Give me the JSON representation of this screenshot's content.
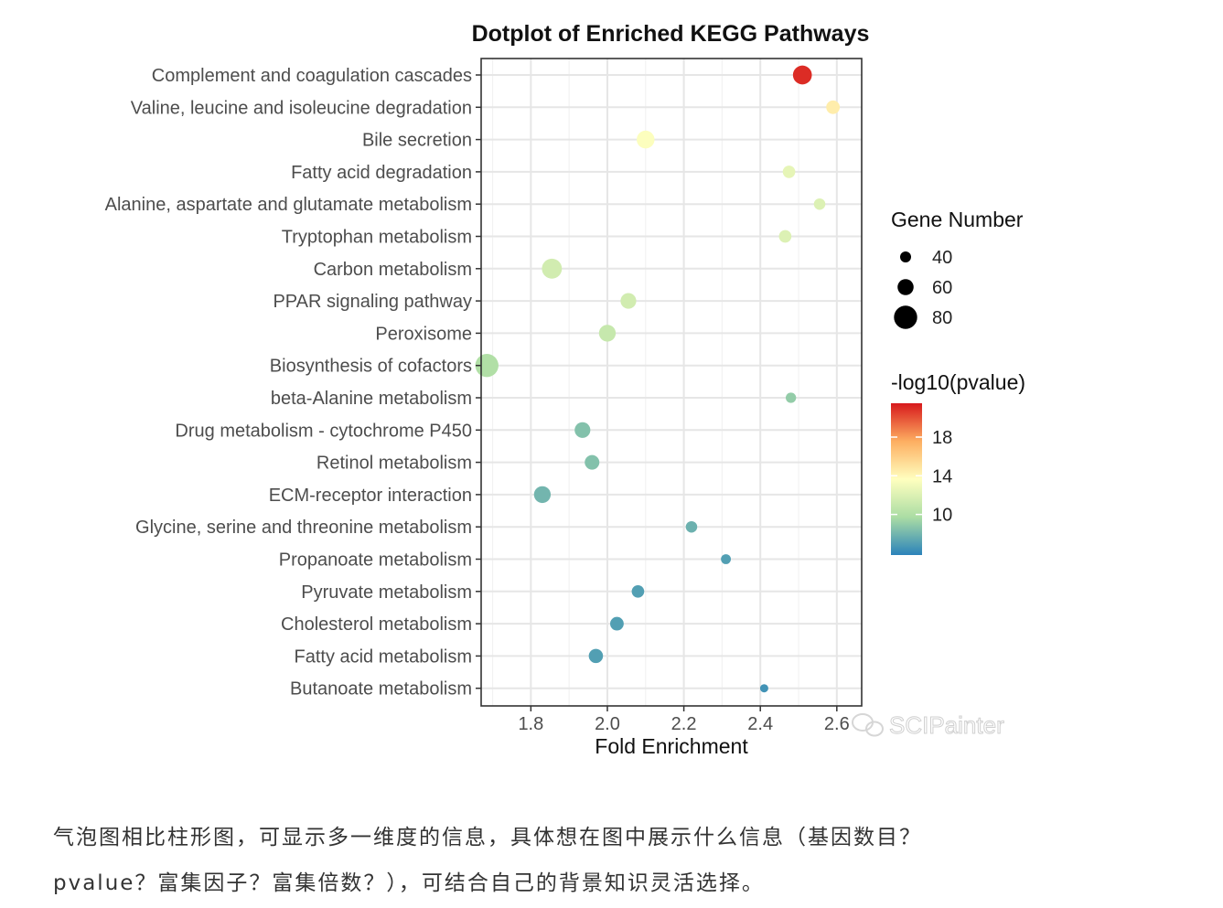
{
  "chart_data": {
    "type": "scatter",
    "title": "Dotplot of Enriched KEGG Pathways",
    "xlabel": "Fold Enrichment",
    "ylabel": "",
    "xlim": [
      1.67,
      2.665
    ],
    "x_ticks": [
      {
        "value": 1.8,
        "label": "1.8"
      },
      {
        "value": 2.0,
        "label": "2.0"
      },
      {
        "value": 2.2,
        "label": "2.2"
      },
      {
        "value": 2.4,
        "label": "2.4"
      },
      {
        "value": 2.6,
        "label": "2.6"
      }
    ],
    "grid": true,
    "legend_position": "right",
    "size_legend": {
      "title": "Gene Number",
      "items": [
        {
          "value": 40,
          "label": "40"
        },
        {
          "value": 60,
          "label": "60"
        },
        {
          "value": 80,
          "label": "80"
        }
      ]
    },
    "color_legend": {
      "title": "-log10(pvalue)",
      "range": [
        5.8,
        21.5
      ],
      "ticks": [
        {
          "value": 18,
          "label": "18"
        },
        {
          "value": 14,
          "label": "14"
        },
        {
          "value": 10,
          "label": "10"
        }
      ],
      "colors": [
        "#d7191c",
        "#fdae61",
        "#ffffbf",
        "#abdda4",
        "#2b83ba"
      ]
    },
    "points": [
      {
        "pathway": "Complement and coagulation cascades",
        "x": 2.51,
        "gene_number": 70,
        "neg_log10_p": 21.0
      },
      {
        "pathway": "Valine, leucine and isoleucine degradation",
        "x": 2.59,
        "gene_number": 45,
        "neg_log10_p": 14.5
      },
      {
        "pathway": "Bile secretion",
        "x": 2.1,
        "gene_number": 65,
        "neg_log10_p": 13.5
      },
      {
        "pathway": "Fatty acid degradation",
        "x": 2.475,
        "gene_number": 40,
        "neg_log10_p": 12.5
      },
      {
        "pathway": "Alanine, aspartate and glutamate metabolism",
        "x": 2.555,
        "gene_number": 35,
        "neg_log10_p": 12.0
      },
      {
        "pathway": "Tryptophan metabolism",
        "x": 2.465,
        "gene_number": 40,
        "neg_log10_p": 12.0
      },
      {
        "pathway": "Carbon metabolism",
        "x": 1.855,
        "gene_number": 75,
        "neg_log10_p": 11.5
      },
      {
        "pathway": "PPAR signaling pathway",
        "x": 2.055,
        "gene_number": 55,
        "neg_log10_p": 11.5
      },
      {
        "pathway": "Peroxisome",
        "x": 2.0,
        "gene_number": 60,
        "neg_log10_p": 11.0
      },
      {
        "pathway": "Biosynthesis of cofactors",
        "x": 1.685,
        "gene_number": 90,
        "neg_log10_p": 10.0
      },
      {
        "pathway": "beta-Alanine metabolism",
        "x": 2.48,
        "gene_number": 30,
        "neg_log10_p": 9.0
      },
      {
        "pathway": "Drug metabolism - cytochrome P450",
        "x": 1.935,
        "gene_number": 55,
        "neg_log10_p": 8.5
      },
      {
        "pathway": "Retinol metabolism",
        "x": 1.96,
        "gene_number": 50,
        "neg_log10_p": 8.5
      },
      {
        "pathway": "ECM-receptor interaction",
        "x": 1.83,
        "gene_number": 60,
        "neg_log10_p": 8.0
      },
      {
        "pathway": "Glycine, serine and threonine metabolism",
        "x": 2.22,
        "gene_number": 35,
        "neg_log10_p": 7.8
      },
      {
        "pathway": "Propanoate metabolism",
        "x": 2.31,
        "gene_number": 28,
        "neg_log10_p": 7.0
      },
      {
        "pathway": "Pyruvate metabolism",
        "x": 2.08,
        "gene_number": 40,
        "neg_log10_p": 7.0
      },
      {
        "pathway": "Cholesterol metabolism",
        "x": 2.025,
        "gene_number": 45,
        "neg_log10_p": 7.0
      },
      {
        "pathway": "Fatty acid metabolism",
        "x": 1.97,
        "gene_number": 48,
        "neg_log10_p": 7.0
      },
      {
        "pathway": "Butanoate metabolism",
        "x": 2.41,
        "gene_number": 20,
        "neg_log10_p": 6.5
      }
    ]
  },
  "watermark": "SCIPainter",
  "caption": {
    "line1": "气泡图相比柱形图，可显示多一维度的信息，具体想在图中展示什么信息（基因数目？",
    "line2": "pvalue？富集因子？富集倍数？），可结合自己的背景知识灵活选择。"
  }
}
